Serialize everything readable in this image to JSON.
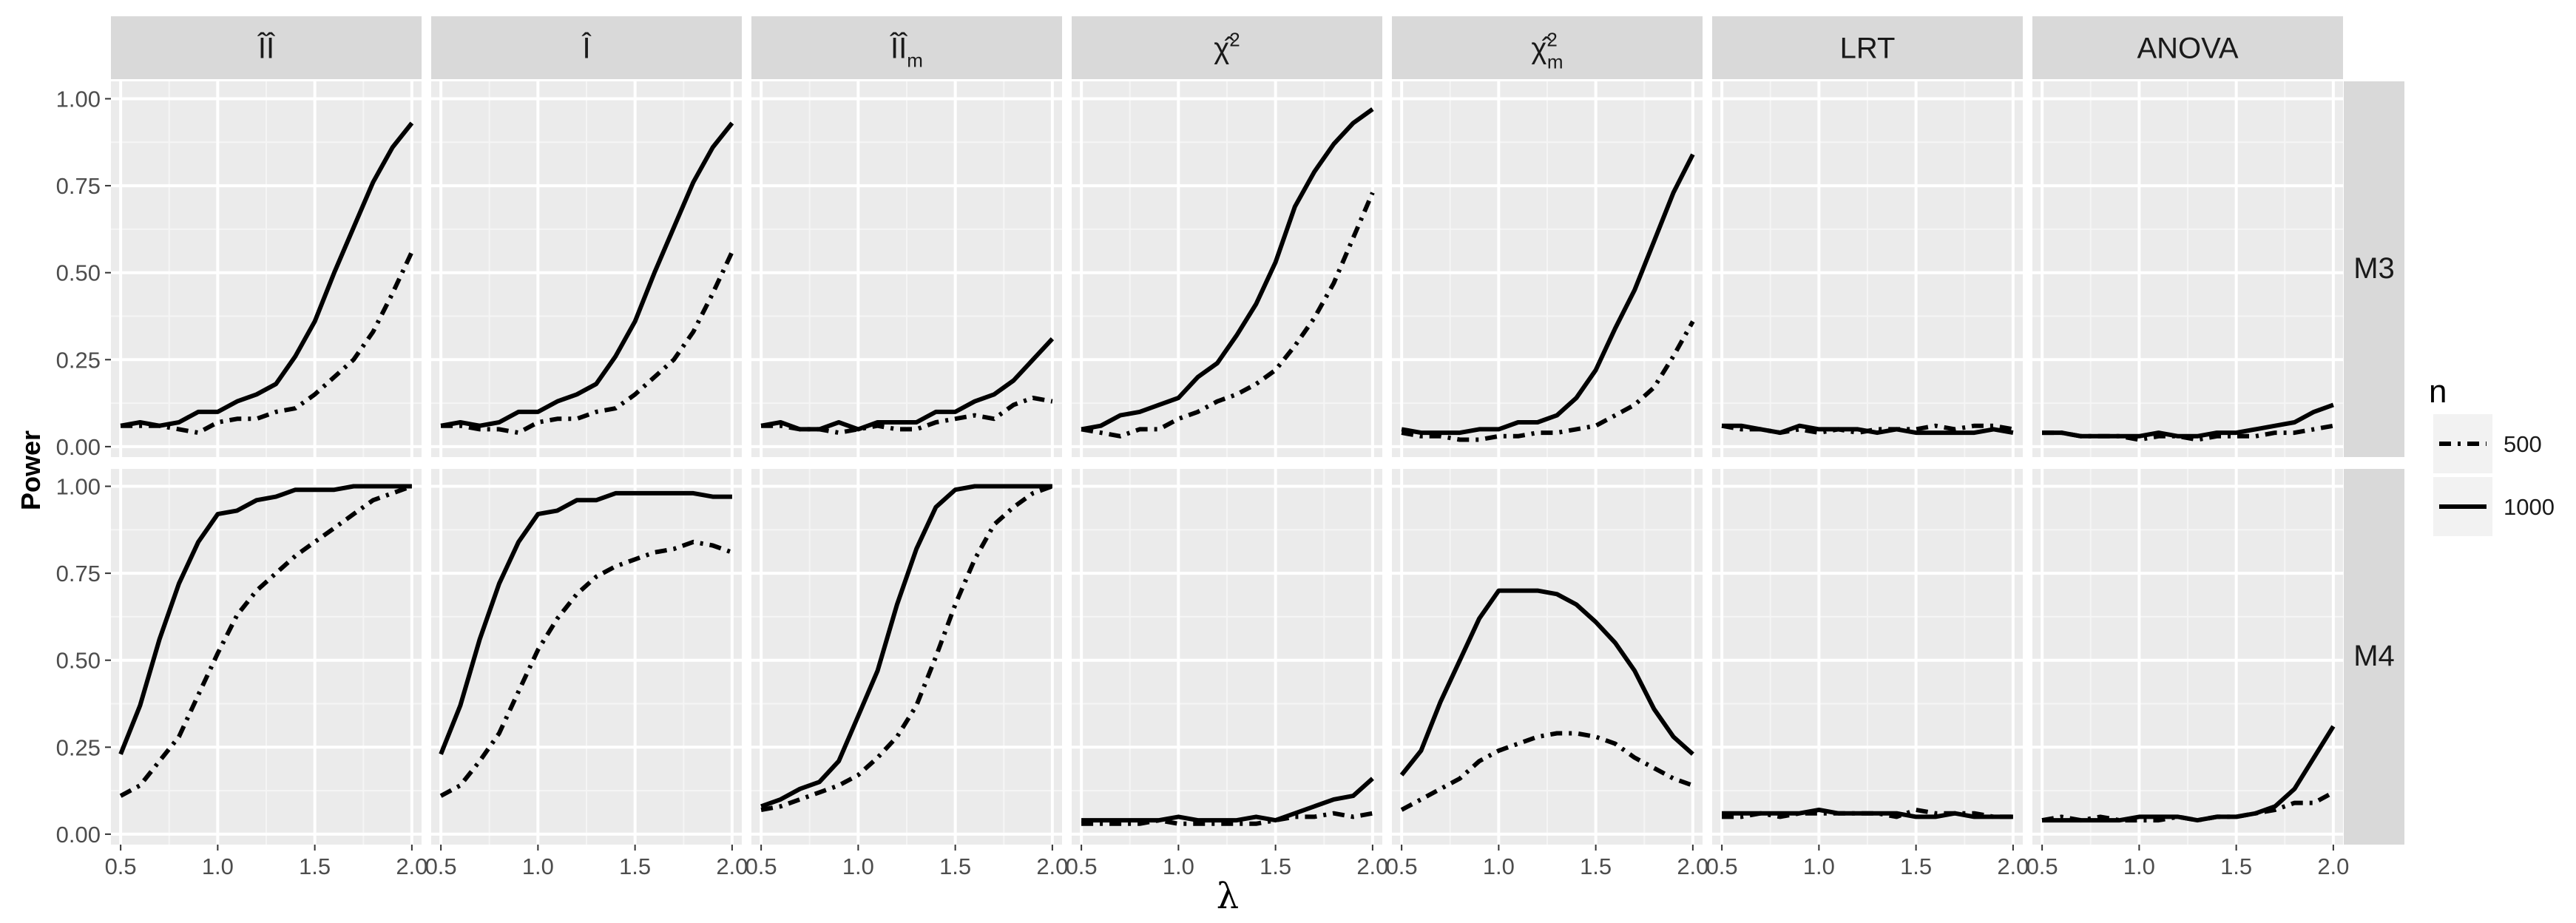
{
  "chart_data": {
    "type": "line",
    "facet_cols": [
      {
        "label": "ÎÎ",
        "sup": "",
        "sub": ""
      },
      {
        "label": "Î",
        "sup": "",
        "sub": ""
      },
      {
        "label": "ÎÎ",
        "sup": "",
        "sub": "m"
      },
      {
        "label": "χ̂",
        "sup": "2",
        "sub": ""
      },
      {
        "label": "χ̂",
        "sup": "2",
        "sub": "m"
      },
      {
        "label": "LRT",
        "sup": "",
        "sub": ""
      },
      {
        "label": "ANOVA",
        "sup": "",
        "sub": ""
      }
    ],
    "facet_rows": [
      "M3",
      "M4"
    ],
    "xlabel": "λ",
    "ylabel": "Power",
    "xlim": [
      0.45,
      2.05
    ],
    "ylim": [
      -0.03,
      1.05
    ],
    "xticks": [
      "0.5",
      "1.0",
      "1.5",
      "2.0"
    ],
    "yticks": [
      "0.00",
      "0.25",
      "0.50",
      "0.75",
      "1.00"
    ],
    "x": [
      0.5,
      0.6,
      0.7,
      0.8,
      0.9,
      1.0,
      1.1,
      1.2,
      1.3,
      1.4,
      1.5,
      1.6,
      1.7,
      1.8,
      1.9,
      2.0
    ],
    "legend": {
      "title": "n",
      "entries": [
        "500",
        "1000"
      ],
      "position": "right"
    },
    "grid": true,
    "panels": [
      [
        {
          "s500": [
            0.06,
            0.06,
            0.06,
            0.05,
            0.04,
            0.07,
            0.08,
            0.08,
            0.1,
            0.11,
            0.15,
            0.2,
            0.25,
            0.33,
            0.44,
            0.56
          ],
          "s1000": [
            0.06,
            0.07,
            0.06,
            0.07,
            0.1,
            0.1,
            0.13,
            0.15,
            0.18,
            0.26,
            0.36,
            0.5,
            0.63,
            0.76,
            0.86,
            0.93
          ]
        },
        {
          "s500": [
            0.06,
            0.06,
            0.05,
            0.05,
            0.04,
            0.07,
            0.08,
            0.08,
            0.1,
            0.11,
            0.15,
            0.2,
            0.25,
            0.33,
            0.44,
            0.56
          ],
          "s1000": [
            0.06,
            0.07,
            0.06,
            0.07,
            0.1,
            0.1,
            0.13,
            0.15,
            0.18,
            0.26,
            0.36,
            0.5,
            0.63,
            0.76,
            0.86,
            0.93
          ]
        },
        {
          "s500": [
            0.06,
            0.06,
            0.05,
            0.05,
            0.04,
            0.05,
            0.06,
            0.05,
            0.05,
            0.07,
            0.08,
            0.09,
            0.08,
            0.12,
            0.14,
            0.13
          ],
          "s1000": [
            0.06,
            0.07,
            0.05,
            0.05,
            0.07,
            0.05,
            0.07,
            0.07,
            0.07,
            0.1,
            0.1,
            0.13,
            0.15,
            0.19,
            0.25,
            0.31
          ]
        },
        {
          "s500": [
            0.05,
            0.04,
            0.03,
            0.05,
            0.05,
            0.08,
            0.1,
            0.13,
            0.15,
            0.18,
            0.22,
            0.29,
            0.37,
            0.47,
            0.6,
            0.73
          ],
          "s1000": [
            0.05,
            0.06,
            0.09,
            0.1,
            0.12,
            0.14,
            0.2,
            0.24,
            0.32,
            0.41,
            0.53,
            0.69,
            0.79,
            0.87,
            0.93,
            0.97
          ]
        },
        {
          "s500": [
            0.04,
            0.03,
            0.03,
            0.02,
            0.02,
            0.03,
            0.03,
            0.04,
            0.04,
            0.05,
            0.06,
            0.09,
            0.12,
            0.17,
            0.26,
            0.36
          ],
          "s1000": [
            0.05,
            0.04,
            0.04,
            0.04,
            0.05,
            0.05,
            0.07,
            0.07,
            0.09,
            0.14,
            0.22,
            0.34,
            0.45,
            0.59,
            0.73,
            0.84
          ]
        },
        {
          "s500": [
            0.06,
            0.05,
            0.05,
            0.04,
            0.05,
            0.04,
            0.05,
            0.04,
            0.05,
            0.05,
            0.05,
            0.06,
            0.05,
            0.06,
            0.06,
            0.05
          ],
          "s1000": [
            0.06,
            0.06,
            0.05,
            0.04,
            0.06,
            0.05,
            0.05,
            0.05,
            0.04,
            0.05,
            0.04,
            0.04,
            0.04,
            0.04,
            0.05,
            0.04
          ]
        },
        {
          "s500": [
            0.04,
            0.04,
            0.03,
            0.03,
            0.03,
            0.02,
            0.03,
            0.03,
            0.02,
            0.03,
            0.03,
            0.03,
            0.04,
            0.04,
            0.05,
            0.06
          ],
          "s1000": [
            0.04,
            0.04,
            0.03,
            0.03,
            0.03,
            0.03,
            0.04,
            0.03,
            0.03,
            0.04,
            0.04,
            0.05,
            0.06,
            0.07,
            0.1,
            0.12
          ]
        }
      ],
      [
        {
          "s500": [
            0.11,
            0.14,
            0.21,
            0.28,
            0.4,
            0.52,
            0.63,
            0.7,
            0.75,
            0.8,
            0.84,
            0.88,
            0.92,
            0.96,
            0.98,
            1.0
          ],
          "s1000": [
            0.23,
            0.37,
            0.56,
            0.72,
            0.84,
            0.92,
            0.93,
            0.96,
            0.97,
            0.99,
            0.99,
            0.99,
            1.0,
            1.0,
            1.0,
            1.0
          ]
        },
        {
          "s500": [
            0.11,
            0.14,
            0.21,
            0.29,
            0.41,
            0.53,
            0.62,
            0.69,
            0.74,
            0.77,
            0.79,
            0.81,
            0.82,
            0.84,
            0.83,
            0.81
          ],
          "s1000": [
            0.23,
            0.37,
            0.56,
            0.72,
            0.84,
            0.92,
            0.93,
            0.96,
            0.96,
            0.98,
            0.98,
            0.98,
            0.98,
            0.98,
            0.97,
            0.97
          ]
        },
        {
          "s500": [
            0.07,
            0.08,
            0.1,
            0.12,
            0.14,
            0.17,
            0.22,
            0.28,
            0.37,
            0.51,
            0.66,
            0.79,
            0.89,
            0.94,
            0.98,
            1.0
          ],
          "s1000": [
            0.08,
            0.1,
            0.13,
            0.15,
            0.21,
            0.34,
            0.47,
            0.66,
            0.82,
            0.94,
            0.99,
            1.0,
            1.0,
            1.0,
            1.0,
            1.0
          ]
        },
        {
          "s500": [
            0.03,
            0.03,
            0.03,
            0.03,
            0.04,
            0.03,
            0.03,
            0.03,
            0.03,
            0.03,
            0.04,
            0.05,
            0.05,
            0.06,
            0.05,
            0.06
          ],
          "s1000": [
            0.04,
            0.04,
            0.04,
            0.04,
            0.04,
            0.05,
            0.04,
            0.04,
            0.04,
            0.05,
            0.04,
            0.06,
            0.08,
            0.1,
            0.11,
            0.16
          ]
        },
        {
          "s500": [
            0.07,
            0.1,
            0.13,
            0.16,
            0.21,
            0.24,
            0.26,
            0.28,
            0.29,
            0.29,
            0.28,
            0.26,
            0.22,
            0.19,
            0.16,
            0.14
          ],
          "s1000": [
            0.17,
            0.24,
            0.38,
            0.5,
            0.62,
            0.7,
            0.7,
            0.7,
            0.69,
            0.66,
            0.61,
            0.55,
            0.47,
            0.36,
            0.28,
            0.23
          ]
        },
        {
          "s500": [
            0.05,
            0.05,
            0.06,
            0.05,
            0.06,
            0.06,
            0.06,
            0.06,
            0.06,
            0.05,
            0.07,
            0.06,
            0.06,
            0.06,
            0.05,
            0.05
          ],
          "s1000": [
            0.06,
            0.06,
            0.06,
            0.06,
            0.06,
            0.07,
            0.06,
            0.06,
            0.06,
            0.06,
            0.05,
            0.05,
            0.06,
            0.05,
            0.05,
            0.05
          ]
        },
        {
          "s500": [
            0.04,
            0.05,
            0.04,
            0.05,
            0.04,
            0.04,
            0.04,
            0.05,
            0.04,
            0.05,
            0.05,
            0.06,
            0.07,
            0.09,
            0.09,
            0.12
          ],
          "s1000": [
            0.04,
            0.04,
            0.04,
            0.04,
            0.04,
            0.05,
            0.05,
            0.05,
            0.04,
            0.05,
            0.05,
            0.06,
            0.08,
            0.13,
            0.22,
            0.31
          ]
        }
      ]
    ]
  }
}
